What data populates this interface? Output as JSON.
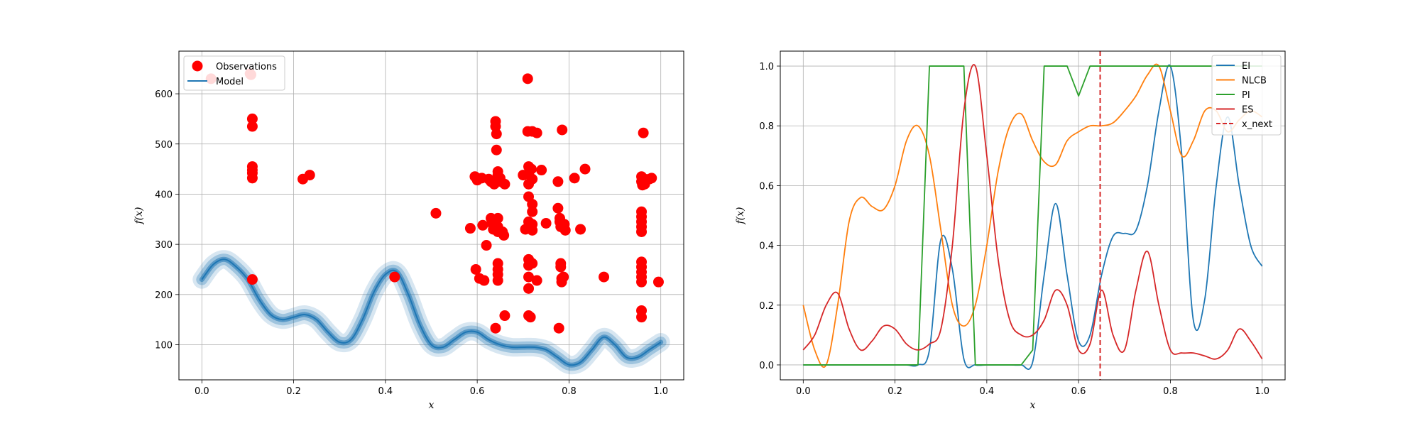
{
  "chart_data": [
    {
      "type": "scatter",
      "xlabel": "x",
      "ylabel": "f(x)",
      "xlim": [
        -0.05,
        1.05
      ],
      "ylim": [
        30,
        685
      ],
      "xticks": [
        "0.0",
        "0.2",
        "0.4",
        "0.6",
        "0.8",
        "1.0"
      ],
      "yticks": [
        "100",
        "200",
        "300",
        "400",
        "500",
        "600"
      ],
      "grid": true,
      "legend_position": "top-left",
      "legend": [
        "Observations",
        "Model"
      ],
      "colors": {
        "observations": "#ff0000",
        "model": "#1f77b4"
      },
      "observations": [
        [
          0.02,
          630
        ],
        [
          0.105,
          640
        ],
        [
          0.107,
          638
        ],
        [
          0.11,
          550
        ],
        [
          0.11,
          535
        ],
        [
          0.11,
          455
        ],
        [
          0.11,
          448
        ],
        [
          0.11,
          442
        ],
        [
          0.11,
          432
        ],
        [
          0.11,
          230
        ],
        [
          0.22,
          430
        ],
        [
          0.235,
          438
        ],
        [
          0.42,
          235
        ],
        [
          0.51,
          362
        ],
        [
          0.585,
          332
        ],
        [
          0.595,
          435
        ],
        [
          0.597,
          250
        ],
        [
          0.6,
          428
        ],
        [
          0.605,
          232
        ],
        [
          0.61,
          432
        ],
        [
          0.612,
          338
        ],
        [
          0.615,
          228
        ],
        [
          0.62,
          298
        ],
        [
          0.625,
          430
        ],
        [
          0.63,
          425
        ],
        [
          0.63,
          352
        ],
        [
          0.632,
          342
        ],
        [
          0.635,
          330
        ],
        [
          0.637,
          420
        ],
        [
          0.64,
          545
        ],
        [
          0.64,
          535
        ],
        [
          0.642,
          520
        ],
        [
          0.642,
          488
        ],
        [
          0.645,
          445
        ],
        [
          0.645,
          438
        ],
        [
          0.645,
          352
        ],
        [
          0.645,
          335
        ],
        [
          0.645,
          325
        ],
        [
          0.645,
          262
        ],
        [
          0.645,
          250
        ],
        [
          0.645,
          240
        ],
        [
          0.645,
          228
        ],
        [
          0.64,
          133
        ],
        [
          0.65,
          432
        ],
        [
          0.652,
          425
        ],
        [
          0.655,
          325
        ],
        [
          0.658,
          318
        ],
        [
          0.66,
          420
        ],
        [
          0.66,
          158
        ],
        [
          0.7,
          438
        ],
        [
          0.705,
          330
        ],
        [
          0.71,
          630
        ],
        [
          0.71,
          525
        ],
        [
          0.712,
          455
        ],
        [
          0.712,
          440
        ],
        [
          0.712,
          420
        ],
        [
          0.712,
          395
        ],
        [
          0.712,
          345
        ],
        [
          0.712,
          270
        ],
        [
          0.712,
          258
        ],
        [
          0.712,
          235
        ],
        [
          0.712,
          212
        ],
        [
          0.712,
          158
        ],
        [
          0.716,
          155
        ],
        [
          0.718,
          450
        ],
        [
          0.72,
          430
        ],
        [
          0.72,
          525
        ],
        [
          0.72,
          380
        ],
        [
          0.72,
          365
        ],
        [
          0.72,
          340
        ],
        [
          0.72,
          328
        ],
        [
          0.72,
          262
        ],
        [
          0.73,
          522
        ],
        [
          0.73,
          228
        ],
        [
          0.74,
          448
        ],
        [
          0.75,
          342
        ],
        [
          0.776,
          425
        ],
        [
          0.776,
          372
        ],
        [
          0.78,
          352
        ],
        [
          0.78,
          345
        ],
        [
          0.782,
          335
        ],
        [
          0.782,
          262
        ],
        [
          0.782,
          255
        ],
        [
          0.784,
          232
        ],
        [
          0.784,
          225
        ],
        [
          0.785,
          528
        ],
        [
          0.788,
          235
        ],
        [
          0.79,
          340
        ],
        [
          0.792,
          328
        ],
        [
          0.778,
          133
        ],
        [
          0.812,
          432
        ],
        [
          0.825,
          330
        ],
        [
          0.835,
          450
        ],
        [
          0.876,
          235
        ],
        [
          0.958,
          435
        ],
        [
          0.958,
          425
        ],
        [
          0.958,
          365
        ],
        [
          0.958,
          355
        ],
        [
          0.958,
          345
        ],
        [
          0.958,
          335
        ],
        [
          0.958,
          325
        ],
        [
          0.958,
          265
        ],
        [
          0.958,
          255
        ],
        [
          0.958,
          245
        ],
        [
          0.958,
          235
        ],
        [
          0.958,
          225
        ],
        [
          0.958,
          168
        ],
        [
          0.958,
          155
        ],
        [
          0.96,
          418
        ],
        [
          0.962,
          522
        ],
        [
          0.965,
          420
        ],
        [
          0.965,
          430
        ],
        [
          0.975,
          430
        ],
        [
          0.98,
          432
        ],
        [
          0.995,
          225
        ]
      ],
      "model_line": {
        "x": [
          0.0,
          0.025,
          0.05,
          0.075,
          0.1,
          0.125,
          0.15,
          0.175,
          0.2,
          0.225,
          0.25,
          0.275,
          0.3,
          0.325,
          0.35,
          0.375,
          0.4,
          0.425,
          0.45,
          0.475,
          0.5,
          0.525,
          0.55,
          0.575,
          0.6,
          0.625,
          0.65,
          0.675,
          0.7,
          0.725,
          0.75,
          0.775,
          0.8,
          0.825,
          0.85,
          0.875,
          0.9,
          0.925,
          0.95,
          0.975,
          1.0
        ],
        "y": [
          230,
          260,
          270,
          255,
          230,
          190,
          160,
          150,
          155,
          160,
          150,
          125,
          105,
          110,
          150,
          205,
          240,
          245,
          200,
          140,
          100,
          95,
          110,
          125,
          125,
          110,
          100,
          95,
          95,
          95,
          90,
          75,
          60,
          65,
          90,
          115,
          100,
          75,
          75,
          90,
          105
        ]
      }
    },
    {
      "type": "line",
      "xlabel": "x",
      "ylabel": "f(x)",
      "xlim": [
        -0.05,
        1.05
      ],
      "ylim": [
        -0.05,
        1.05
      ],
      "xticks": [
        "0.0",
        "0.2",
        "0.4",
        "0.6",
        "0.8",
        "1.0"
      ],
      "yticks": [
        "0.0",
        "0.2",
        "0.4",
        "0.6",
        "0.8",
        "1.0"
      ],
      "grid": true,
      "legend_position": "top-right",
      "legend": [
        "EI",
        "NLCB",
        "PI",
        "ES",
        "x_next"
      ],
      "x_next": 0.647,
      "x": [
        0.0,
        0.025,
        0.05,
        0.075,
        0.1,
        0.125,
        0.15,
        0.175,
        0.2,
        0.225,
        0.25,
        0.275,
        0.3,
        0.325,
        0.35,
        0.375,
        0.4,
        0.425,
        0.45,
        0.475,
        0.5,
        0.525,
        0.55,
        0.575,
        0.6,
        0.625,
        0.65,
        0.675,
        0.7,
        0.725,
        0.75,
        0.775,
        0.8,
        0.825,
        0.85,
        0.875,
        0.9,
        0.925,
        0.95,
        0.975,
        1.0
      ],
      "series": [
        {
          "name": "EI",
          "color": "#1f77b4",
          "values": [
            0,
            0,
            0,
            0,
            0,
            0,
            0,
            0,
            0,
            0,
            0,
            0.05,
            0.42,
            0.32,
            0.02,
            0,
            0,
            0,
            0,
            0,
            0.01,
            0.3,
            0.54,
            0.3,
            0.08,
            0.1,
            0.3,
            0.43,
            0.44,
            0.45,
            0.6,
            0.85,
            1.0,
            0.7,
            0.15,
            0.22,
            0.6,
            0.83,
            0.6,
            0.4,
            0.33
          ]
        },
        {
          "name": "NLCB",
          "color": "#ff7f0e",
          "values": [
            0.2,
            0.05,
            0.0,
            0.2,
            0.48,
            0.56,
            0.53,
            0.52,
            0.6,
            0.75,
            0.8,
            0.7,
            0.45,
            0.2,
            0.13,
            0.2,
            0.4,
            0.65,
            0.8,
            0.84,
            0.75,
            0.68,
            0.67,
            0.75,
            0.78,
            0.8,
            0.8,
            0.81,
            0.85,
            0.9,
            0.97,
            1.0,
            0.85,
            0.7,
            0.75,
            0.85,
            0.85,
            0.78,
            0.82,
            0.85,
            0.83
          ]
        },
        {
          "name": "PI",
          "color": "#2ca02c",
          "values": [
            0,
            0,
            0,
            0,
            0,
            0,
            0,
            0,
            0,
            0,
            0,
            1.0,
            1.0,
            1.0,
            1.0,
            0,
            0,
            0,
            0,
            0,
            0.05,
            1.0,
            1.0,
            1.0,
            0.9,
            1.0,
            1.0,
            1.0,
            1.0,
            1.0,
            1.0,
            1.0,
            1.0,
            1.0,
            1.0,
            1.0,
            1.0,
            1.0,
            1.0,
            1.0,
            1.0
          ]
        },
        {
          "name": "ES",
          "color": "#d62728",
          "values": [
            0.05,
            0.1,
            0.2,
            0.24,
            0.12,
            0.05,
            0.08,
            0.13,
            0.12,
            0.07,
            0.05,
            0.07,
            0.12,
            0.4,
            0.85,
            1.0,
            0.7,
            0.35,
            0.15,
            0.1,
            0.1,
            0.15,
            0.25,
            0.2,
            0.05,
            0.07,
            0.25,
            0.1,
            0.05,
            0.25,
            0.38,
            0.2,
            0.05,
            0.04,
            0.04,
            0.03,
            0.02,
            0.05,
            0.12,
            0.08,
            0.02
          ]
        }
      ]
    }
  ]
}
